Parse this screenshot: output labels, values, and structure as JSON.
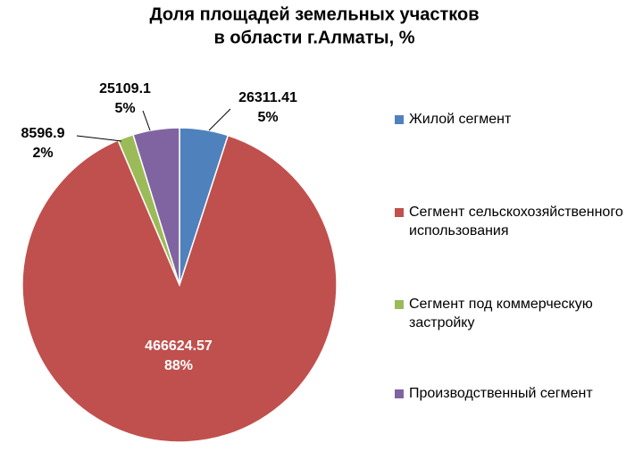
{
  "chart_data": {
    "type": "pie",
    "title": [
      "Доля площадей земельных участков",
      "в области г.Алматы, %"
    ],
    "categories": [
      "Жилой сегмент",
      "Сегмент сельскохозяйственного использования",
      "Сегмент под коммерческую застройку",
      "Производственный сегмент"
    ],
    "values": [
      26311.41,
      466624.57,
      8596.9,
      25109.1
    ],
    "percent_labels": [
      "5%",
      "88%",
      "2%",
      "5%"
    ],
    "colors": [
      "#4f81bd",
      "#c0504d",
      "#9bbb59",
      "#8064a2"
    ],
    "legend": "right"
  }
}
